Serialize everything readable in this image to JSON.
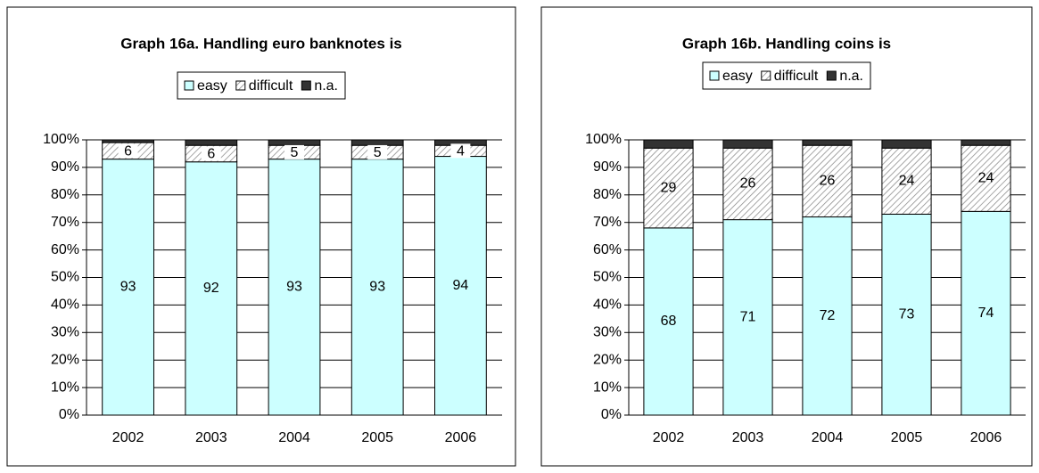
{
  "chart_data": [
    {
      "type": "bar",
      "stacked": true,
      "title": "Graph 16a. Handling euro banknotes is",
      "categories": [
        "2002",
        "2003",
        "2004",
        "2005",
        "2006"
      ],
      "series": [
        {
          "name": "easy",
          "color": "#ccffff",
          "values": [
            93,
            92,
            93,
            93,
            94
          ]
        },
        {
          "name": "difficult",
          "color": "hatch",
          "values": [
            6,
            6,
            5,
            5,
            4
          ]
        },
        {
          "name": "n.a.",
          "color": "#333333",
          "values": [
            1,
            2,
            2,
            2,
            2
          ]
        }
      ],
      "ylim": [
        0,
        100
      ],
      "yticks": [
        {
          "value": 0,
          "label": "0%"
        },
        {
          "value": 10,
          "label": "10%"
        },
        {
          "value": 20,
          "label": "20%"
        },
        {
          "value": 30,
          "label": "30%"
        },
        {
          "value": 40,
          "label": "40%"
        },
        {
          "value": 50,
          "label": "50%"
        },
        {
          "value": 60,
          "label": "60%"
        },
        {
          "value": 70,
          "label": "70%"
        },
        {
          "value": 80,
          "label": "80%"
        },
        {
          "value": 90,
          "label": "90%"
        },
        {
          "value": 100,
          "label": "100%"
        }
      ],
      "grid": true,
      "legend": "top"
    },
    {
      "type": "bar",
      "stacked": true,
      "title": "Graph 16b. Handling coins is",
      "categories": [
        "2002",
        "2003",
        "2004",
        "2005",
        "2006"
      ],
      "series": [
        {
          "name": "easy",
          "color": "#ccffff",
          "values": [
            68,
            71,
            72,
            73,
            74
          ]
        },
        {
          "name": "difficult",
          "color": "hatch",
          "values": [
            29,
            26,
            26,
            24,
            24
          ]
        },
        {
          "name": "n.a.",
          "color": "#333333",
          "values": [
            3,
            3,
            2,
            3,
            2
          ]
        }
      ],
      "ylim": [
        0,
        100
      ],
      "yticks": [
        {
          "value": 0,
          "label": "0%"
        },
        {
          "value": 10,
          "label": "10%"
        },
        {
          "value": 20,
          "label": "20%"
        },
        {
          "value": 30,
          "label": "30%"
        },
        {
          "value": 40,
          "label": "40%"
        },
        {
          "value": 50,
          "label": "50%"
        },
        {
          "value": 60,
          "label": "60%"
        },
        {
          "value": 70,
          "label": "70%"
        },
        {
          "value": 80,
          "label": "80%"
        },
        {
          "value": 90,
          "label": "90%"
        },
        {
          "value": 100,
          "label": "100%"
        }
      ],
      "grid": true,
      "legend": "top"
    }
  ]
}
